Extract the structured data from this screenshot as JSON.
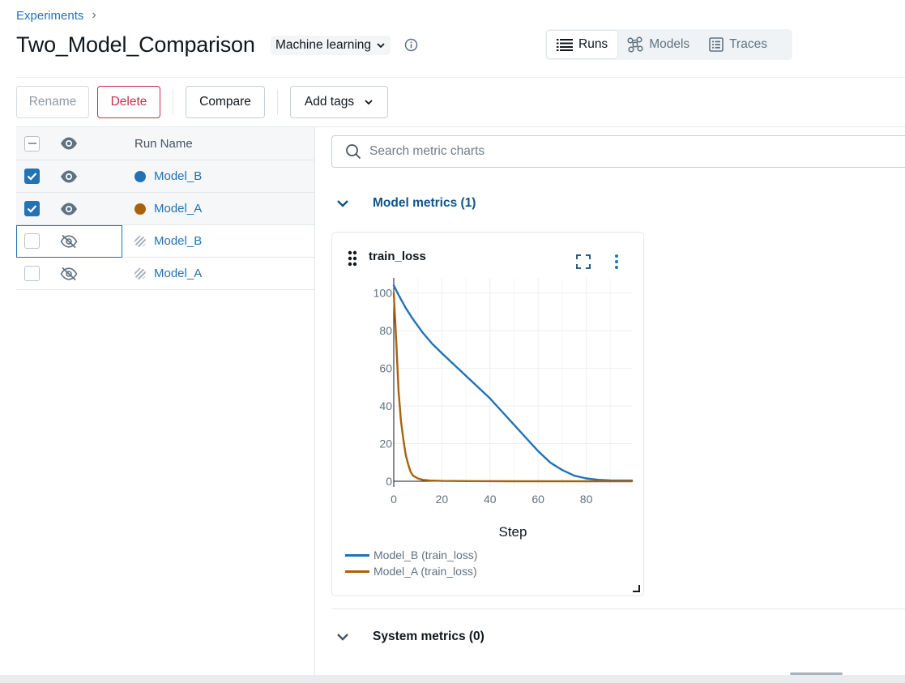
{
  "breadcrumb": {
    "root": "Experiments"
  },
  "experiment": {
    "title": "Two_Model_Comparison",
    "type": "Machine learning"
  },
  "view_tabs": [
    {
      "label": "Runs",
      "icon": "list-icon",
      "active": true
    },
    {
      "label": "Models",
      "icon": "models-icon",
      "active": false
    },
    {
      "label": "Traces",
      "icon": "traces-icon",
      "active": false
    }
  ],
  "toolbar": {
    "rename": "Rename",
    "delete": "Delete",
    "compare": "Compare",
    "add_tags": "Add tags"
  },
  "runs_table": {
    "column_header": "Run Name",
    "rows": [
      {
        "name": "Model_B",
        "checked": true,
        "visible": true,
        "color": "#2272b4"
      },
      {
        "name": "Model_A",
        "checked": true,
        "visible": true,
        "color": "#a9620c"
      },
      {
        "name": "Model_B",
        "checked": false,
        "visible": false,
        "color": null
      },
      {
        "name": "Model_A",
        "checked": false,
        "visible": false,
        "color": null
      }
    ]
  },
  "search": {
    "placeholder": "Search metric charts"
  },
  "sections": {
    "model_metrics": "Model metrics (1)",
    "system_metrics": "System metrics (0)"
  },
  "colors": {
    "accent": "#2272b4",
    "model_b": "#2272b4",
    "model_a": "#a9620c",
    "danger": "#c82d4c"
  },
  "chart_data": {
    "type": "line",
    "title": "train_loss",
    "xlabel": "Step",
    "ylabel": "",
    "xlim": [
      0,
      99
    ],
    "ylim": [
      -3,
      108
    ],
    "xticks": [
      0,
      20,
      40,
      60,
      80
    ],
    "yticks": [
      0,
      20,
      40,
      60,
      80,
      100
    ],
    "grid": true,
    "legend_position": "bottom-left",
    "series": [
      {
        "name": "Model_B (train_loss)",
        "color": "#2272b4",
        "x": [
          0,
          2,
          5,
          8,
          12,
          16,
          20,
          25,
          30,
          35,
          40,
          45,
          50,
          55,
          60,
          65,
          70,
          75,
          80,
          85,
          90,
          95,
          99
        ],
        "y": [
          104,
          99,
          92,
          86,
          79,
          73,
          68,
          62,
          56,
          50,
          44,
          37,
          30,
          23,
          16,
          10,
          6,
          3,
          1.5,
          0.8,
          0.5,
          0.4,
          0.4
        ]
      },
      {
        "name": "Model_A (train_loss)",
        "color": "#a9620c",
        "x": [
          0,
          1,
          2,
          3,
          4,
          5,
          6,
          7,
          8,
          10,
          12,
          15,
          20,
          30,
          50,
          70,
          99
        ],
        "y": [
          100,
          75,
          48,
          32,
          22,
          14,
          9,
          5,
          3,
          1.5,
          0.8,
          0.4,
          0.2,
          0.1,
          0,
          0,
          0
        ]
      }
    ]
  }
}
